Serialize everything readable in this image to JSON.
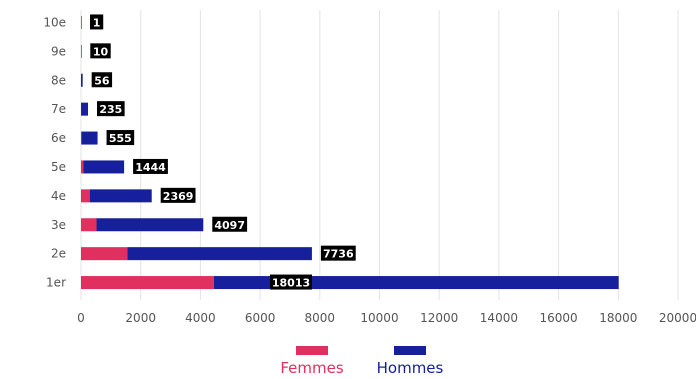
{
  "chart_data": {
    "type": "bar",
    "orientation": "horizontal",
    "stacked": true,
    "categories": [
      "1er",
      "2e",
      "3e",
      "4e",
      "5e",
      "6e",
      "7e",
      "8e",
      "9e",
      "10e"
    ],
    "series": [
      {
        "name": "Femmes",
        "color": "#e0305f",
        "values": [
          4450,
          1550,
          520,
          290,
          75,
          20,
          5,
          1,
          0,
          0
        ]
      },
      {
        "name": "Hommes",
        "color": "#16209c",
        "values": [
          13563,
          6186,
          3577,
          2079,
          1369,
          535,
          230,
          55,
          10,
          1
        ]
      }
    ],
    "totals": [
      18013,
      7736,
      4097,
      2369,
      1444,
      555,
      235,
      56,
      10,
      1
    ],
    "xlim": [
      0,
      20000
    ],
    "xticks": [
      "0",
      "2000",
      "4000",
      "6000",
      "8000",
      "10000",
      "12000",
      "14000",
      "16000",
      "18000",
      "20000"
    ],
    "grid": true,
    "legend_position": "bottom"
  }
}
